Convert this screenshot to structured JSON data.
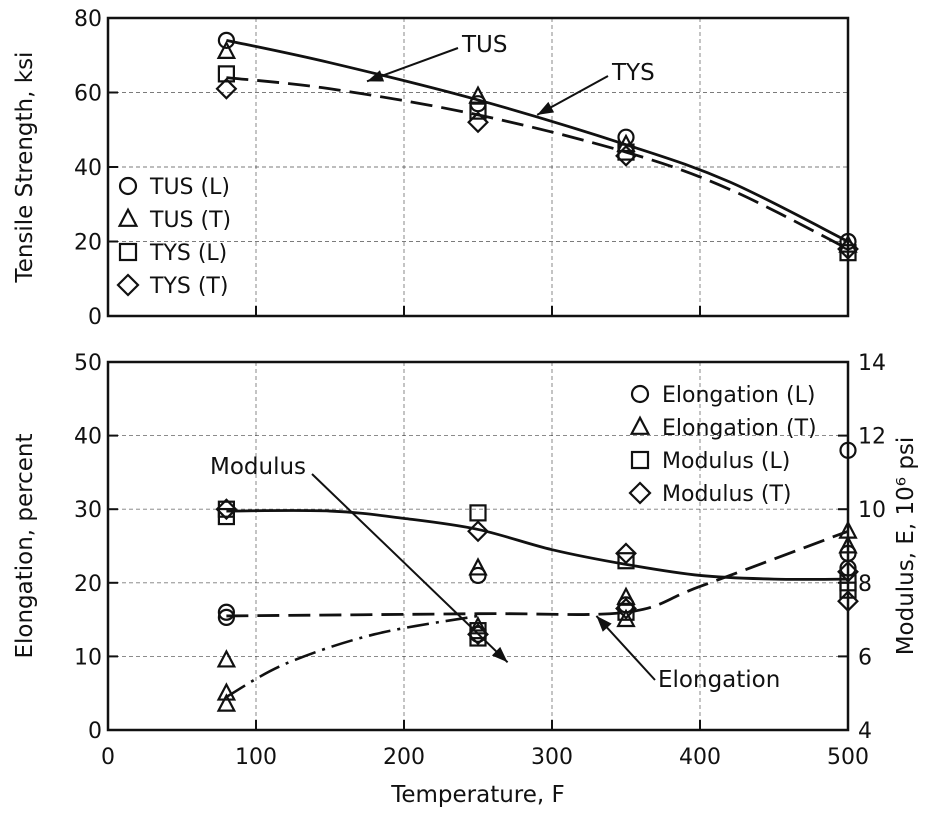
{
  "chart_data": [
    {
      "type": "scatter",
      "x_axis": {
        "range": [
          0,
          500
        ],
        "ticks": [
          0,
          100,
          200,
          300,
          400,
          500
        ],
        "label": ""
      },
      "y_axis": {
        "label": "Tensile Strength, ksi",
        "range": [
          0,
          80
        ],
        "ticks": [
          0,
          20,
          40,
          60,
          80
        ]
      },
      "grid": true,
      "legend": {
        "placement": "left",
        "entries": [
          {
            "label": "TUS (L)",
            "marker": "circle"
          },
          {
            "label": "TUS (T)",
            "marker": "triangle"
          },
          {
            "label": "TYS (L)",
            "marker": "square"
          },
          {
            "label": "TYS (T)",
            "marker": "diamond"
          }
        ]
      },
      "series": [
        {
          "name": "TUS (L)",
          "marker": "circle",
          "points": [
            [
              80,
              74
            ],
            [
              250,
              57
            ],
            [
              350,
              48
            ],
            [
              500,
              20
            ]
          ]
        },
        {
          "name": "TUS (T)",
          "marker": "triangle",
          "points": [
            [
              80,
              71
            ],
            [
              250,
              59
            ],
            [
              350,
              46
            ],
            [
              500,
              19
            ]
          ]
        },
        {
          "name": "TYS (L)",
          "marker": "square",
          "points": [
            [
              80,
              65
            ],
            [
              250,
              55
            ],
            [
              350,
              44
            ],
            [
              500,
              17
            ]
          ]
        },
        {
          "name": "TYS (T)",
          "marker": "diamond",
          "points": [
            [
              80,
              61
            ],
            [
              250,
              52
            ],
            [
              350,
              43
            ],
            [
              500,
              18
            ]
          ]
        }
      ],
      "curves": [
        {
          "label": "TUS",
          "style": "solid",
          "points": [
            [
              80,
              74
            ],
            [
              150,
              68
            ],
            [
              250,
              58
            ],
            [
              350,
              46
            ],
            [
              420,
              36
            ],
            [
              500,
              20
            ]
          ]
        },
        {
          "label": "TYS",
          "style": "dashed",
          "points": [
            [
              80,
              64
            ],
            [
              150,
              61
            ],
            [
              250,
              54
            ],
            [
              350,
              44
            ],
            [
              420,
              34
            ],
            [
              500,
              18
            ]
          ]
        }
      ],
      "annotations": [
        {
          "text": "TUS",
          "arrow_to": [
            175,
            63
          ]
        },
        {
          "text": "TYS",
          "arrow_to": [
            290,
            54
          ]
        }
      ]
    },
    {
      "type": "scatter",
      "x_axis": {
        "label": "Temperature, F",
        "range": [
          0,
          500
        ],
        "ticks": [
          0,
          100,
          200,
          300,
          400,
          500
        ]
      },
      "y_axis": {
        "label": "Elongation, percent",
        "range": [
          0,
          50
        ],
        "ticks": [
          0,
          10,
          20,
          30,
          40,
          50
        ]
      },
      "y2_axis": {
        "label": "Modulus, E, 10⁶ psi",
        "range": [
          4,
          14
        ],
        "ticks": [
          4,
          6,
          8,
          10,
          12,
          14
        ]
      },
      "grid": true,
      "legend": {
        "placement": "top-right",
        "entries": [
          {
            "label": "Elongation (L)",
            "marker": "circle"
          },
          {
            "label": "Elongation (T)",
            "marker": "triangle"
          },
          {
            "label": "Modulus (L)",
            "marker": "square"
          },
          {
            "label": "Modulus (T)",
            "marker": "diamond"
          }
        ]
      },
      "series": [
        {
          "name": "Elongation (L)",
          "axis": "left",
          "marker": "circle",
          "points": [
            [
              80,
              16
            ],
            [
              80,
              15.3
            ],
            [
              250,
              21
            ],
            [
              250,
              13
            ],
            [
              350,
              17
            ],
            [
              500,
              38
            ],
            [
              500,
              24
            ],
            [
              500,
              22
            ]
          ]
        },
        {
          "name": "Elongation (T)",
          "axis": "left",
          "marker": "triangle",
          "points": [
            [
              80,
              9.5
            ],
            [
              80,
              5
            ],
            [
              80,
              3.5
            ],
            [
              250,
              22
            ],
            [
              250,
              14
            ],
            [
              350,
              15
            ],
            [
              350,
              18
            ],
            [
              500,
              27
            ],
            [
              500,
              25
            ]
          ]
        },
        {
          "name": "Modulus (L)",
          "axis": "right",
          "marker": "square",
          "points": [
            [
              80,
              10
            ],
            [
              80,
              9.8
            ],
            [
              250,
              9.9
            ],
            [
              250,
              6.7
            ],
            [
              250,
              6.5
            ],
            [
              350,
              8.6
            ],
            [
              350,
              7.2
            ],
            [
              500,
              8
            ],
            [
              500,
              7.8
            ]
          ]
        },
        {
          "name": "Modulus (T)",
          "axis": "right",
          "marker": "diamond",
          "points": [
            [
              80,
              10
            ],
            [
              250,
              9.4
            ],
            [
              250,
              6.6
            ],
            [
              350,
              8.8
            ],
            [
              350,
              7.3
            ],
            [
              500,
              8.3
            ],
            [
              500,
              7.5
            ]
          ]
        }
      ],
      "curves": [
        {
          "label": "Modulus",
          "axis": "right",
          "style": "solid",
          "points": [
            [
              80,
              9.95
            ],
            [
              150,
              9.95
            ],
            [
              200,
              9.75
            ],
            [
              250,
              9.45
            ],
            [
              300,
              8.9
            ],
            [
              350,
              8.5
            ],
            [
              400,
              8.2
            ],
            [
              450,
              8.1
            ],
            [
              500,
              8.1
            ]
          ]
        },
        {
          "label": "Elongation",
          "axis": "left",
          "style": "dashed",
          "points": [
            [
              80,
              15.5
            ],
            [
              250,
              15.8
            ],
            [
              350,
              16.0
            ],
            [
              400,
              19.5
            ],
            [
              500,
              27
            ]
          ]
        },
        {
          "label": "",
          "axis": "left",
          "style": "dash-dot",
          "points": [
            [
              80,
              4.5
            ],
            [
              120,
              9
            ],
            [
              180,
              13
            ],
            [
              250,
              15.5
            ]
          ]
        }
      ],
      "annotations": [
        {
          "text": "Modulus",
          "arrow_to": [
            270,
            9.2
          ]
        },
        {
          "text": "Elongation",
          "arrow_to": [
            330,
            15.5
          ]
        }
      ]
    }
  ]
}
